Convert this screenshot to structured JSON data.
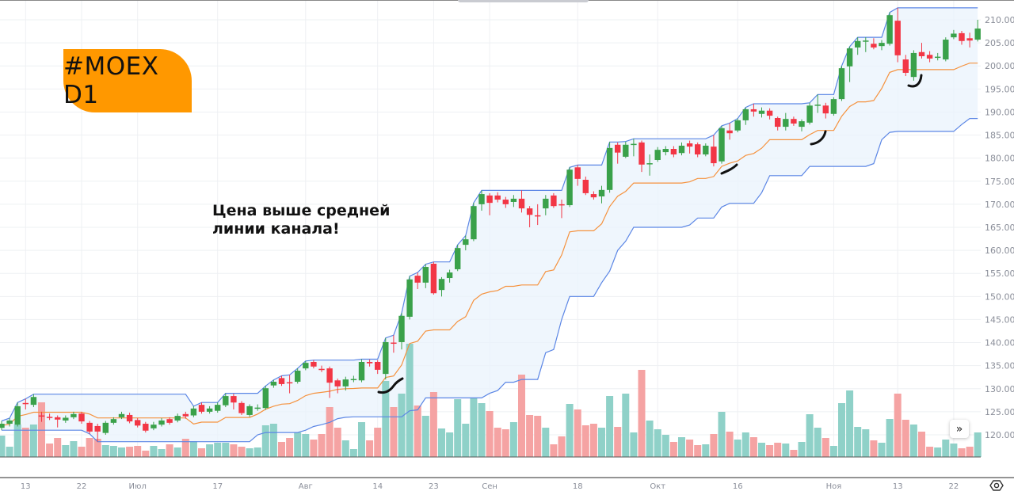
{
  "badge": {
    "label": "#MOEX D1"
  },
  "annotation": {
    "text": "Цена выше средней\nлинии канала!"
  },
  "scroll_button": {
    "icon": "double-chevron-right-icon",
    "label": "»"
  },
  "colors": {
    "up_candle": "#3aa14a",
    "down_candle": "#f23645",
    "up_volume": "#8fd1c8",
    "down_volume": "#f5a3a3",
    "channel_band": "#5b86e5",
    "channel_mid": "#f5923e",
    "channel_fill": "#eaf3fc",
    "badge": "#ff9800",
    "grid": "#eef0f3",
    "axis_text": "#8a8e99"
  },
  "chart_data": {
    "type": "candlestick",
    "title": "#MOEX D1",
    "indicator": {
      "name": "Donchian Channel",
      "length": 20
    },
    "ylim": [
      115.5,
      212.6
    ],
    "y_ticks": [
      "210.00",
      "205.00",
      "200.00",
      "195.00",
      "190.00",
      "185.00",
      "180.00",
      "175.00",
      "170.00",
      "165.00",
      "160.00",
      "155.00",
      "150.00",
      "145.00",
      "140.00",
      "135.00",
      "130.00",
      "125.00",
      "120.00"
    ],
    "y_tick_values": [
      210,
      205,
      200,
      195,
      190,
      185,
      180,
      175,
      170,
      165,
      160,
      155,
      150,
      145,
      140,
      135,
      130,
      125,
      120
    ],
    "x_ticks": [
      {
        "label": "13",
        "index": 3
      },
      {
        "label": "22",
        "index": 10
      },
      {
        "label": "Июл",
        "index": 17
      },
      {
        "label": "17",
        "index": 27
      },
      {
        "label": "Авг",
        "index": 38
      },
      {
        "label": "14",
        "index": 47
      },
      {
        "label": "23",
        "index": 54
      },
      {
        "label": "Сен",
        "index": 61
      },
      {
        "label": "18",
        "index": 72
      },
      {
        "label": "Окт",
        "index": 82
      },
      {
        "label": "16",
        "index": 92
      },
      {
        "label": "Ноя",
        "index": 104
      },
      {
        "label": "13",
        "index": 112
      },
      {
        "label": "22",
        "index": 119
      }
    ],
    "ohlc_format": [
      "open",
      "high",
      "low",
      "close"
    ],
    "candles": [
      [
        121.5,
        123.0,
        121.0,
        122.4
      ],
      [
        122.4,
        123.6,
        121.8,
        123.1
      ],
      [
        122.2,
        127.0,
        121.8,
        126.2
      ],
      [
        126.9,
        127.8,
        125.5,
        126.8
      ],
      [
        126.5,
        128.8,
        126.0,
        128.2
      ],
      [
        124.2,
        125.0,
        122.8,
        124.0
      ],
      [
        123.9,
        124.6,
        123.2,
        123.8
      ],
      [
        123.8,
        124.2,
        121.6,
        123.3
      ],
      [
        123.1,
        124.2,
        122.6,
        123.7
      ],
      [
        123.8,
        125.0,
        123.4,
        124.5
      ],
      [
        124.6,
        125.0,
        122.4,
        122.9
      ],
      [
        122.6,
        123.0,
        120.2,
        120.7
      ],
      [
        121.9,
        122.4,
        118.5,
        120.7
      ],
      [
        120.4,
        123.0,
        120.0,
        122.6
      ],
      [
        122.6,
        123.8,
        122.2,
        123.4
      ],
      [
        123.8,
        125.0,
        123.4,
        124.5
      ],
      [
        124.3,
        124.8,
        122.5,
        122.9
      ],
      [
        123.2,
        123.6,
        121.6,
        122.0
      ],
      [
        122.4,
        122.8,
        120.5,
        120.9
      ],
      [
        121.4,
        122.8,
        121.0,
        122.2
      ],
      [
        122.2,
        123.6,
        121.8,
        123.1
      ],
      [
        123.4,
        123.8,
        122.2,
        122.6
      ],
      [
        123.1,
        124.6,
        122.7,
        124.1
      ],
      [
        124.5,
        125.0,
        123.5,
        124.0
      ],
      [
        124.2,
        126.2,
        123.8,
        125.7
      ],
      [
        126.5,
        127.0,
        124.6,
        125.0
      ],
      [
        125.0,
        126.2,
        124.6,
        125.7
      ],
      [
        125.2,
        127.0,
        124.8,
        126.5
      ],
      [
        126.4,
        129.0,
        126.0,
        128.4
      ],
      [
        128.4,
        128.9,
        125.5,
        127.0
      ],
      [
        126.9,
        127.3,
        124.3,
        124.7
      ],
      [
        124.3,
        126.6,
        123.9,
        126.2
      ],
      [
        125.8,
        126.6,
        125.2,
        125.9
      ],
      [
        125.8,
        130.6,
        125.4,
        130.1
      ],
      [
        130.7,
        131.9,
        130.2,
        131.5
      ],
      [
        132.3,
        132.8,
        130.6,
        131.0
      ],
      [
        131.4,
        133.0,
        129.0,
        131.3
      ],
      [
        131.5,
        134.4,
        131.1,
        133.9
      ],
      [
        134.4,
        136.0,
        134.0,
        135.6
      ],
      [
        135.8,
        136.2,
        134.4,
        134.8
      ],
      [
        134.3,
        135.0,
        133.6,
        134.2
      ],
      [
        134.4,
        134.8,
        128.0,
        131.3
      ],
      [
        131.8,
        132.2,
        129.0,
        130.5
      ],
      [
        130.5,
        132.6,
        129.6,
        132.0
      ],
      [
        132.0,
        132.8,
        131.4,
        132.1
      ],
      [
        131.8,
        136.4,
        131.4,
        135.8
      ],
      [
        135.8,
        136.3,
        134.8,
        135.5
      ],
      [
        135.8,
        136.2,
        133.2,
        134.1
      ],
      [
        133.2,
        141.0,
        132.0,
        140.1
      ],
      [
        140.0,
        141.6,
        137.8,
        139.8
      ],
      [
        140.1,
        146.4,
        138.5,
        145.8
      ],
      [
        145.6,
        154.4,
        145.0,
        153.7
      ],
      [
        154.5,
        155.2,
        151.6,
        153.0
      ],
      [
        153.0,
        157.0,
        151.8,
        156.4
      ],
      [
        157.1,
        157.5,
        150.4,
        150.7
      ],
      [
        151.4,
        154.2,
        150.0,
        153.8
      ],
      [
        154.0,
        155.8,
        153.0,
        155.2
      ],
      [
        155.9,
        161.2,
        155.5,
        160.5
      ],
      [
        161.2,
        163.2,
        160.0,
        162.4
      ],
      [
        162.4,
        170.3,
        162.0,
        169.6
      ],
      [
        170.0,
        173.0,
        168.6,
        172.2
      ],
      [
        171.9,
        172.4,
        167.6,
        170.3
      ],
      [
        171.9,
        172.6,
        170.4,
        171.0
      ],
      [
        171.0,
        171.6,
        169.2,
        170.0
      ],
      [
        170.5,
        172.0,
        169.4,
        171.2
      ],
      [
        171.2,
        173.0,
        168.2,
        169.1
      ],
      [
        169.1,
        169.6,
        165.0,
        167.7
      ],
      [
        167.6,
        170.0,
        165.5,
        167.5
      ],
      [
        169.1,
        172.0,
        167.6,
        171.2
      ],
      [
        171.9,
        172.4,
        169.2,
        169.6
      ],
      [
        170.0,
        171.0,
        167.0,
        169.9
      ],
      [
        169.8,
        178.0,
        169.4,
        177.5
      ],
      [
        178.0,
        178.5,
        174.0,
        175.5
      ],
      [
        175.3,
        176.0,
        172.0,
        172.4
      ],
      [
        172.2,
        172.8,
        171.0,
        171.5
      ],
      [
        171.7,
        174.0,
        170.2,
        173.1
      ],
      [
        173.1,
        183.5,
        172.5,
        182.2
      ],
      [
        182.9,
        183.4,
        178.8,
        181.2
      ],
      [
        180.3,
        183.6,
        180.0,
        182.9
      ],
      [
        183.0,
        184.2,
        180.4,
        183.1
      ],
      [
        183.4,
        183.8,
        177.0,
        178.6
      ],
      [
        178.8,
        180.8,
        176.2,
        178.9
      ],
      [
        179.6,
        182.4,
        179.2,
        181.8
      ],
      [
        181.3,
        182.6,
        180.6,
        182.0
      ],
      [
        182.0,
        182.6,
        180.2,
        180.8
      ],
      [
        181.1,
        183.4,
        180.6,
        182.7
      ],
      [
        183.2,
        183.8,
        181.0,
        182.5
      ],
      [
        183.0,
        183.4,
        180.2,
        180.8
      ],
      [
        180.8,
        183.2,
        180.4,
        182.7
      ],
      [
        182.5,
        185.0,
        178.2,
        178.9
      ],
      [
        179.3,
        187.0,
        178.8,
        186.5
      ],
      [
        186.0,
        187.6,
        184.0,
        185.4
      ],
      [
        186.0,
        188.6,
        185.6,
        188.2
      ],
      [
        188.2,
        191.0,
        187.2,
        190.6
      ],
      [
        190.6,
        191.8,
        189.0,
        190.1
      ],
      [
        189.6,
        191.0,
        188.8,
        190.3
      ],
      [
        190.3,
        190.8,
        188.4,
        189.2
      ],
      [
        188.7,
        189.0,
        186.0,
        186.8
      ],
      [
        186.8,
        189.8,
        186.0,
        188.5
      ],
      [
        188.5,
        189.0,
        187.0,
        187.5
      ],
      [
        186.8,
        188.4,
        185.8,
        188.0
      ],
      [
        187.7,
        192.0,
        187.3,
        191.4
      ],
      [
        191.6,
        193.8,
        189.8,
        191.6
      ],
      [
        191.4,
        192.0,
        188.6,
        189.7
      ],
      [
        189.6,
        193.2,
        189.2,
        192.8
      ],
      [
        192.8,
        200.0,
        192.4,
        199.5
      ],
      [
        199.9,
        204.2,
        196.5,
        203.8
      ],
      [
        204.0,
        206.2,
        202.4,
        205.4
      ],
      [
        205.4,
        206.2,
        203.0,
        205.5
      ],
      [
        204.8,
        206.0,
        203.6,
        204.0
      ],
      [
        204.3,
        205.6,
        203.4,
        205.0
      ],
      [
        204.8,
        211.6,
        204.4,
        211.0
      ],
      [
        209.8,
        212.6,
        200.8,
        202.3
      ],
      [
        201.4,
        202.4,
        197.8,
        198.5
      ],
      [
        197.6,
        203.4,
        196.8,
        202.8
      ],
      [
        203.0,
        205.0,
        201.6,
        202.1
      ],
      [
        202.4,
        203.2,
        200.8,
        201.6
      ],
      [
        201.9,
        202.8,
        201.2,
        202.0
      ],
      [
        201.4,
        206.2,
        201.0,
        205.7
      ],
      [
        206.2,
        207.8,
        205.8,
        207.0
      ],
      [
        207.1,
        207.6,
        204.6,
        205.4
      ],
      [
        206.0,
        207.2,
        204.0,
        205.5
      ],
      [
        205.7,
        210.0,
        205.3,
        208.1
      ]
    ],
    "volume_relative": [
      27,
      13,
      41,
      37,
      41,
      69,
      17,
      24,
      15,
      20,
      13,
      24,
      23,
      15,
      14,
      12,
      13,
      14,
      8,
      14,
      10,
      16,
      12,
      23,
      20,
      11,
      16,
      18,
      18,
      16,
      13,
      11,
      12,
      40,
      42,
      19,
      24,
      31,
      29,
      22,
      29,
      63,
      37,
      21,
      10,
      44,
      21,
      37,
      96,
      63,
      80,
      143,
      65,
      52,
      82,
      36,
      31,
      73,
      42,
      75,
      68,
      58,
      37,
      35,
      44,
      104,
      53,
      52,
      37,
      16,
      26,
      67,
      60,
      40,
      42,
      37,
      77,
      38,
      80,
      31,
      110,
      46,
      35,
      28,
      19,
      25,
      22,
      15,
      16,
      29,
      57,
      32,
      22,
      31,
      25,
      18,
      15,
      18,
      17,
      9,
      19,
      54,
      37,
      24,
      14,
      68,
      84,
      38,
      35,
      21,
      18,
      48,
      80,
      47,
      41,
      32,
      13,
      12,
      22,
      17,
      11,
      13,
      31
    ],
    "hand_marks_at_index": [
      47,
      91,
      102,
      114
    ],
    "grid": true
  }
}
